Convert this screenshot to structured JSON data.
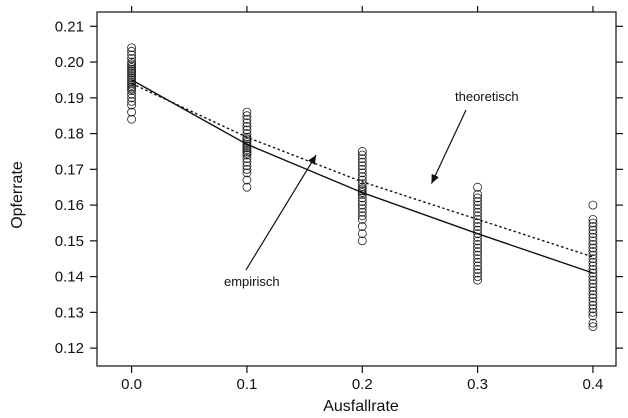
{
  "chart_data": {
    "type": "scatter",
    "xlabel": "Ausfallrate",
    "ylabel": "Opferrate",
    "xlim": [
      -0.03,
      0.42
    ],
    "ylim": [
      0.115,
      0.214
    ],
    "x_ticks": [
      0.0,
      0.1,
      0.2,
      0.3,
      0.4
    ],
    "x_tick_labels": [
      "0.0",
      "0.1",
      "0.2",
      "0.3",
      "0.4"
    ],
    "y_ticks": [
      0.12,
      0.13,
      0.14,
      0.15,
      0.16,
      0.17,
      0.18,
      0.19,
      0.2,
      0.21
    ],
    "y_tick_labels": [
      "0.12",
      "0.13",
      "0.14",
      "0.15",
      "0.16",
      "0.17",
      "0.18",
      "0.19",
      "0.20",
      "0.21"
    ],
    "grid": false,
    "series": [
      {
        "style": "circles",
        "points": [
          {
            "x": 0.0,
            "y": [
              0.184,
              0.186,
              0.188,
              0.189,
              0.19,
              0.191,
              0.192,
              0.1925,
              0.193,
              0.1935,
              0.194,
              0.1945,
              0.195,
              0.1955,
              0.196,
              0.1965,
              0.197,
              0.1975,
              0.198,
              0.1985,
              0.199,
              0.1995,
              0.2,
              0.201,
              0.202,
              0.203,
              0.204
            ]
          },
          {
            "x": 0.1,
            "y": [
              0.165,
              0.167,
              0.169,
              0.17,
              0.171,
              0.172,
              0.173,
              0.174,
              0.1745,
              0.175,
              0.1755,
              0.176,
              0.1765,
              0.177,
              0.1775,
              0.178,
              0.1785,
              0.179,
              0.18,
              0.181,
              0.182,
              0.183,
              0.184,
              0.185,
              0.186
            ]
          },
          {
            "x": 0.2,
            "y": [
              0.15,
              0.152,
              0.154,
              0.156,
              0.157,
              0.158,
              0.159,
              0.16,
              0.161,
              0.162,
              0.163,
              0.1635,
              0.164,
              0.1645,
              0.165,
              0.166,
              0.167,
              0.168,
              0.169,
              0.17,
              0.171,
              0.172,
              0.173,
              0.174,
              0.175
            ]
          },
          {
            "x": 0.3,
            "y": [
              0.139,
              0.14,
              0.141,
              0.142,
              0.143,
              0.144,
              0.145,
              0.146,
              0.147,
              0.148,
              0.149,
              0.15,
              0.151,
              0.152,
              0.153,
              0.154,
              0.155,
              0.156,
              0.157,
              0.158,
              0.159,
              0.16,
              0.161,
              0.162,
              0.163,
              0.165
            ]
          },
          {
            "x": 0.4,
            "y": [
              0.126,
              0.127,
              0.129,
              0.13,
              0.131,
              0.132,
              0.133,
              0.134,
              0.135,
              0.136,
              0.137,
              0.138,
              0.139,
              0.14,
              0.141,
              0.142,
              0.143,
              0.144,
              0.145,
              0.146,
              0.147,
              0.148,
              0.149,
              0.15,
              0.151,
              0.152,
              0.153,
              0.154,
              0.155,
              0.156,
              0.16
            ]
          }
        ]
      },
      {
        "style": "solid line",
        "x": [
          0.0,
          0.1,
          0.2,
          0.3,
          0.4
        ],
        "y": [
          0.195,
          0.177,
          0.1635,
          0.152,
          0.141
        ]
      },
      {
        "style": "dotted line",
        "x": [
          0.0,
          0.1,
          0.2,
          0.3,
          0.4
        ],
        "y": [
          0.194,
          0.179,
          0.1665,
          0.156,
          0.1455
        ]
      }
    ],
    "annotations": [
      {
        "text": "theoretisch",
        "points_to": {
          "x": 0.26,
          "y": 0.166
        }
      },
      {
        "text": "empirisch",
        "points_to": {
          "x": 0.16,
          "y": 0.174
        }
      }
    ]
  }
}
